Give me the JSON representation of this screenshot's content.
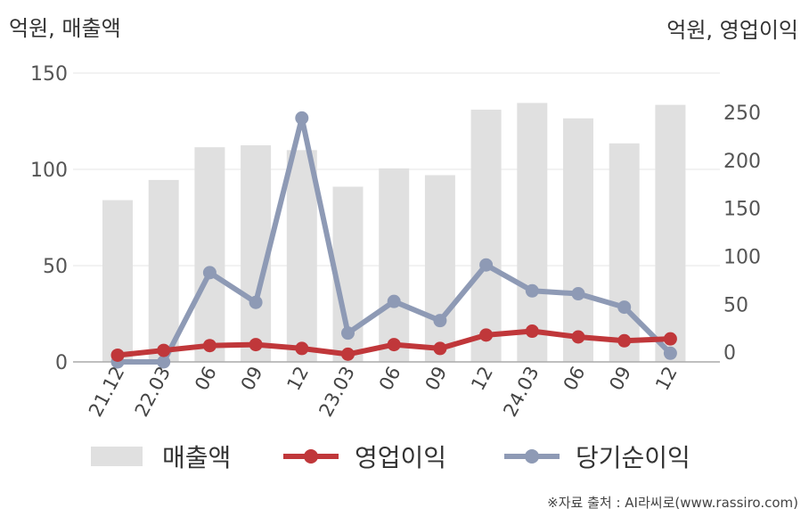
{
  "chart_data": {
    "type": "bar",
    "left_axis_title": "억원, 매출액",
    "right_axis_title": "억원, 영업이익",
    "categories": [
      "21.12",
      "22.03",
      "06",
      "09",
      "12",
      "23.03",
      "06",
      "09",
      "12",
      "24.03",
      "06",
      "09",
      "12"
    ],
    "left_axis": {
      "ticks": [
        "0",
        "50",
        "100",
        "150"
      ],
      "range": [
        0,
        150
      ]
    },
    "right_axis": {
      "ticks": [
        "0",
        "50",
        "100",
        "150",
        "200",
        "250"
      ],
      "range": [
        -10,
        275
      ]
    },
    "series": [
      {
        "name": "매출액",
        "type": "bar",
        "axis": "left",
        "color": "#e0e0e0",
        "values": [
          84,
          94.5,
          111.5,
          112.5,
          110,
          91,
          100.5,
          97,
          131,
          134.5,
          126.5,
          113.5,
          133.5
        ]
      },
      {
        "name": "영업이익",
        "type": "line",
        "axis": "right",
        "color": "#c0373a",
        "values": [
          -3,
          2,
          7,
          8,
          4,
          -2,
          8,
          4,
          18,
          22,
          16,
          12,
          14
        ]
      },
      {
        "name": "당기순이익",
        "type": "line",
        "axis": "right",
        "color": "#8e9ab5",
        "values": [
          -10,
          -10,
          83,
          52,
          244,
          20,
          53,
          33,
          91,
          64,
          61,
          47,
          -1
        ]
      }
    ],
    "grid": true,
    "legend_position": "bottom"
  },
  "source_text": "※자료 출처 : AI라씨로(www.rassiro.com)"
}
